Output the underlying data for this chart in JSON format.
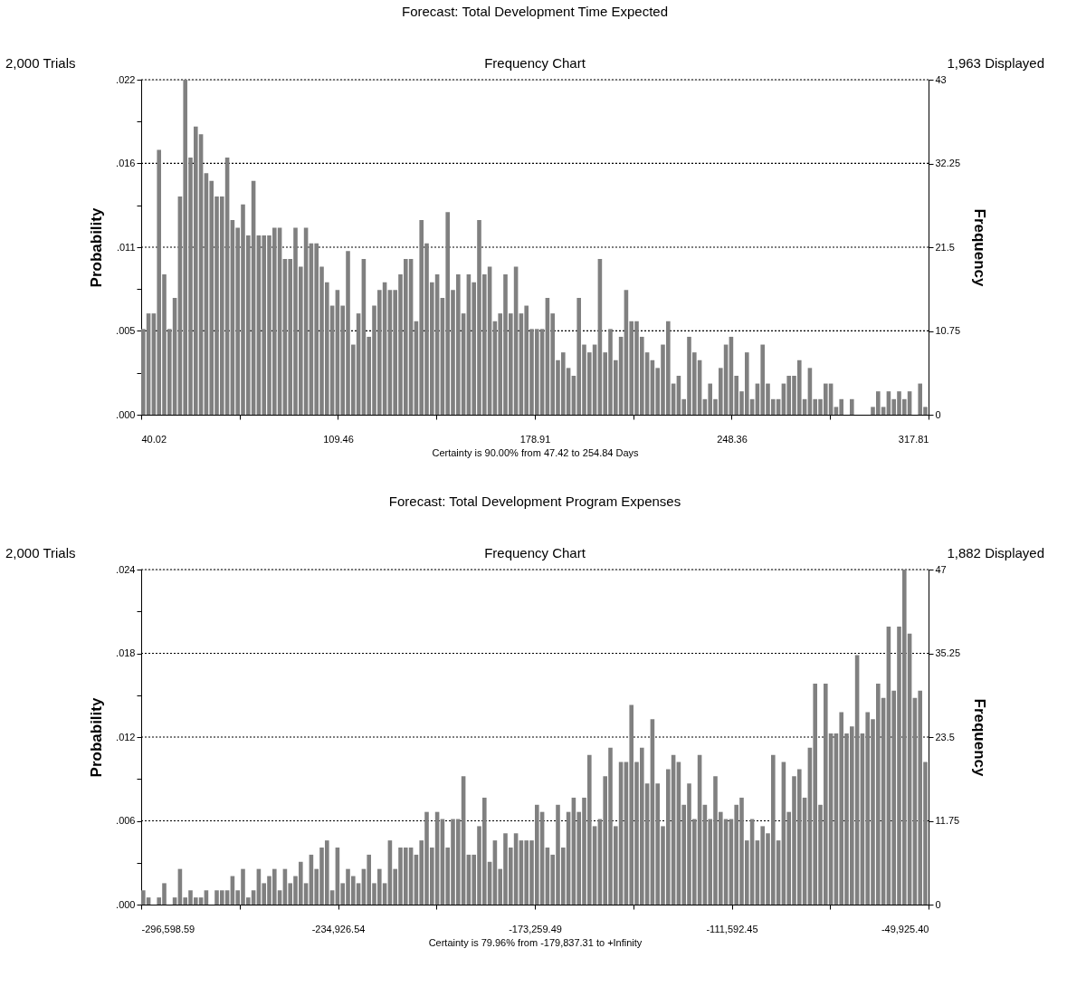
{
  "chart_data": [
    {
      "type": "histogram",
      "title": "Forecast: Total Development Time Expected",
      "subtitle": "Frequency Chart",
      "xlabel": "Certainty is 90.00% from 47.42 to 254.84 Days",
      "ylabel": "Probability",
      "y2label": "Frequency",
      "annotations": [
        "2,000 Trials",
        "1,963 Displayed"
      ],
      "bins": [
        40.02,
        41.87,
        43.72,
        45.58,
        47.43,
        49.28,
        51.13,
        52.98,
        54.84,
        56.69,
        58.54,
        60.39,
        62.24,
        64.1,
        65.95,
        67.8,
        69.65,
        71.5,
        73.35,
        75.21,
        77.06,
        78.91,
        80.76,
        82.62,
        84.47,
        86.32,
        88.17,
        90.02,
        91.87,
        93.73,
        95.58,
        97.43,
        99.28,
        101.13,
        102.99,
        104.84,
        106.69,
        108.54,
        110.39,
        112.25,
        114.1,
        115.95,
        117.8,
        119.65,
        121.51,
        123.36,
        125.21,
        127.06,
        128.91,
        130.76,
        132.62,
        134.47,
        136.32,
        138.17,
        140.03,
        141.88,
        143.73,
        145.58,
        147.43,
        149.28,
        151.14,
        152.99,
        154.84,
        156.69,
        158.54,
        160.4,
        162.25,
        164.1,
        165.95,
        167.8,
        169.66,
        171.51,
        173.36,
        175.21,
        177.06,
        178.91,
        180.77,
        182.62,
        184.47,
        186.32,
        188.17,
        190.03,
        191.88,
        193.73,
        195.58,
        197.43,
        199.29,
        201.14,
        202.99,
        204.84,
        206.69,
        208.55,
        210.4,
        212.25,
        214.1,
        215.95,
        217.81,
        219.66,
        221.51,
        223.36,
        225.21,
        227.07,
        228.92,
        230.77,
        232.62,
        234.47,
        236.33,
        238.18,
        240.03,
        241.88,
        243.73,
        245.58,
        247.44,
        249.29,
        251.14,
        252.99,
        254.84,
        256.7,
        258.55,
        260.4,
        262.25,
        264.1,
        265.96,
        267.81,
        269.66,
        271.51,
        273.36,
        275.22,
        277.07,
        278.92,
        280.77,
        282.62,
        284.48,
        286.33,
        288.18,
        290.03,
        291.88,
        293.74,
        295.59,
        297.44,
        299.29,
        301.14,
        303.0,
        304.85,
        306.7,
        308.55,
        310.4,
        312.25,
        314.11,
        315.96,
        317.81
      ],
      "series": [
        {
          "axis": "y2",
          "color": "#808080",
          "values": [
            11,
            13,
            13,
            34,
            18,
            11,
            15,
            28,
            43,
            33,
            37,
            36,
            31,
            30,
            28,
            28,
            33,
            25,
            24,
            27,
            23,
            30,
            23,
            23,
            23,
            24,
            24,
            20,
            20,
            24,
            19,
            24,
            22,
            22,
            19,
            17,
            14,
            16,
            14,
            21,
            9,
            13,
            20,
            10,
            14,
            16,
            17,
            16,
            16,
            18,
            20,
            20,
            12,
            25,
            22,
            17,
            18,
            15,
            26,
            16,
            18,
            13,
            18,
            17,
            25,
            18,
            19,
            12,
            13,
            18,
            13,
            19,
            13,
            14,
            11,
            11,
            11,
            15,
            13,
            7,
            8,
            6,
            5,
            15,
            9,
            8,
            9,
            20,
            8,
            11,
            7,
            10,
            16,
            12,
            12,
            10,
            8,
            7,
            6,
            9,
            12,
            4,
            5,
            2,
            10,
            8,
            7,
            2,
            4,
            2,
            6,
            9,
            10,
            5,
            3,
            8,
            2,
            4,
            9,
            4,
            2,
            2,
            4,
            5,
            5,
            7,
            2,
            6,
            2,
            2,
            4,
            4,
            1,
            2,
            0,
            2,
            0,
            0,
            0,
            1,
            3,
            1,
            3,
            2,
            3,
            2,
            3,
            0,
            4,
            1
          ]
        }
      ],
      "xlim": [
        40.02,
        317.81
      ],
      "xticks": [
        40.02,
        {
          "value": 74.74,
          "label": null
        },
        109.46,
        {
          "value": 144.19,
          "label": null
        },
        178.91,
        {
          "value": 213.64,
          "label": null
        },
        248.36,
        {
          "value": 283.09,
          "label": null
        },
        317.81
      ],
      "ylim": [
        0,
        0.0219
      ],
      "yticks": [
        {
          "value": 0,
          "label": ".000"
        },
        {
          "value": 0.00274,
          "label": null
        },
        {
          "value": 0.00548,
          "label": ".005"
        },
        {
          "value": 0.00822,
          "label": null
        },
        {
          "value": 0.01095,
          "label": ".011"
        },
        {
          "value": 0.01369,
          "label": null
        },
        {
          "value": 0.01643,
          "label": ".016"
        },
        {
          "value": 0.01917,
          "label": null
        },
        {
          "value": 0.0219,
          "label": ".022"
        }
      ],
      "y2lim": [
        0,
        43
      ],
      "y2ticks": [
        0,
        10.75,
        21.5,
        32.25,
        43
      ],
      "grid": "y"
    },
    {
      "type": "histogram",
      "title": "Forecast: Total Development Program Expenses",
      "subtitle": "Frequency Chart",
      "xlabel": "Certainty is 79.96% from -179,837.31 to +Infinity",
      "ylabel": "Probability",
      "y2label": "Frequency",
      "annotations": [
        "2,000 Trials",
        "1,882 Displayed"
      ],
      "bins": [
        -296598.59,
        -294954,
        -293310,
        -291665,
        -290021,
        -288376,
        -286732,
        -285087,
        -283443,
        -281798,
        -280154,
        -278509,
        -276865,
        -275220,
        -273576,
        -271931,
        -270287,
        -268642,
        -266998,
        -265353,
        -263709,
        -262064,
        -260420,
        -258775,
        -257131,
        -255486,
        -253842,
        -252197,
        -250553,
        -248908,
        -247264,
        -245619,
        -243975,
        -242330,
        -240686,
        -239042,
        -237397,
        -235753,
        -234108,
        -232464,
        -230819,
        -229175,
        -227530,
        -225886,
        -224241,
        -222597,
        -220952,
        -219308,
        -217663,
        -216019,
        -214374,
        -212730,
        -211085,
        -209441,
        -207796,
        -206152,
        -204507,
        -202863,
        -201218,
        -199574,
        -197929,
        -196285,
        -194640,
        -192996,
        -191351,
        -189707,
        -188062,
        -186418,
        -184773,
        -183129,
        -181484,
        -179840,
        -178195,
        -176551,
        -174906,
        -173262,
        -171618,
        -169973,
        -168329,
        -166684,
        -165040,
        -163395,
        -161751,
        -160106,
        -158462,
        -156817,
        -155173,
        -153528,
        -151884,
        -150239,
        -148595,
        -146950,
        -145306,
        -143661,
        -142017,
        -140372,
        -138728,
        -137083,
        -135439,
        -133794,
        -132150,
        -130505,
        -128861,
        -127216,
        -125572,
        -123927,
        -122283,
        -120638,
        -118994,
        -117349,
        -115705,
        -114060,
        -112416,
        -110771,
        -109127,
        -107483,
        -105838,
        -104194,
        -102549,
        -100905,
        -99260,
        -97616,
        -95971,
        -94327,
        -92682,
        -91038,
        -89393,
        -87749,
        -86104,
        -84460,
        -82815,
        -81171,
        -79526,
        -77882,
        -76237,
        -74593,
        -72948,
        -71304,
        -69659,
        -68015,
        -66370,
        -64726,
        -63081,
        -61437,
        -59792,
        -58148,
        -56503,
        -54859,
        -53214,
        -51570,
        -49925.4
      ],
      "series": [
        {
          "axis": "y2",
          "color": "#808080",
          "values": [
            2,
            1,
            0,
            1,
            3,
            0,
            1,
            5,
            1,
            2,
            1,
            1,
            2,
            0,
            2,
            2,
            2,
            4,
            2,
            5,
            1,
            2,
            5,
            3,
            4,
            5,
            2,
            5,
            3,
            4,
            6,
            3,
            7,
            5,
            8,
            9,
            2,
            8,
            3,
            5,
            4,
            3,
            5,
            7,
            3,
            5,
            3,
            9,
            5,
            8,
            8,
            8,
            7,
            9,
            13,
            8,
            13,
            12,
            8,
            12,
            12,
            18,
            7,
            7,
            11,
            15,
            6,
            9,
            5,
            10,
            8,
            10,
            9,
            9,
            9,
            14,
            13,
            8,
            7,
            14,
            8,
            13,
            15,
            13,
            15,
            21,
            11,
            12,
            18,
            22,
            11,
            20,
            20,
            28,
            20,
            22,
            17,
            26,
            17,
            11,
            19,
            21,
            20,
            14,
            17,
            12,
            21,
            14,
            12,
            18,
            13,
            12,
            12,
            14,
            15,
            9,
            12,
            9,
            11,
            10,
            21,
            9,
            20,
            13,
            18,
            19,
            15,
            22,
            31,
            14,
            31,
            24,
            24,
            27,
            24,
            25,
            35,
            24,
            27,
            26,
            31,
            29,
            39,
            30,
            39,
            47,
            38,
            29,
            30,
            20
          ]
        }
      ],
      "xlim": [
        -296598.59,
        -49925.4
      ],
      "xticks": [
        {
          "value": -296598.59,
          "label": "-296,598.59"
        },
        {
          "value": -265762.57,
          "label": null
        },
        {
          "value": -234926.54,
          "label": "-234,926.54"
        },
        {
          "value": -204093.02,
          "label": null
        },
        {
          "value": -173259.49,
          "label": "-173,259.49"
        },
        {
          "value": -142425.97,
          "label": null
        },
        {
          "value": -111592.45,
          "label": "-111,592.45"
        },
        {
          "value": -80758.93,
          "label": null
        },
        {
          "value": -49925.4,
          "label": "-49,925.40"
        }
      ],
      "ylim": [
        0,
        0.024
      ],
      "yticks": [
        {
          "value": 0,
          "label": ".000"
        },
        {
          "value": 0.003,
          "label": null
        },
        {
          "value": 0.006,
          "label": ".006"
        },
        {
          "value": 0.009,
          "label": null
        },
        {
          "value": 0.012,
          "label": ".012"
        },
        {
          "value": 0.015,
          "label": null
        },
        {
          "value": 0.018,
          "label": ".018"
        },
        {
          "value": 0.021,
          "label": null
        },
        {
          "value": 0.024,
          "label": ".024"
        }
      ],
      "y2lim": [
        0,
        47
      ],
      "y2ticks": [
        0,
        11.75,
        23.5,
        35.25,
        47
      ],
      "grid": "y"
    }
  ]
}
